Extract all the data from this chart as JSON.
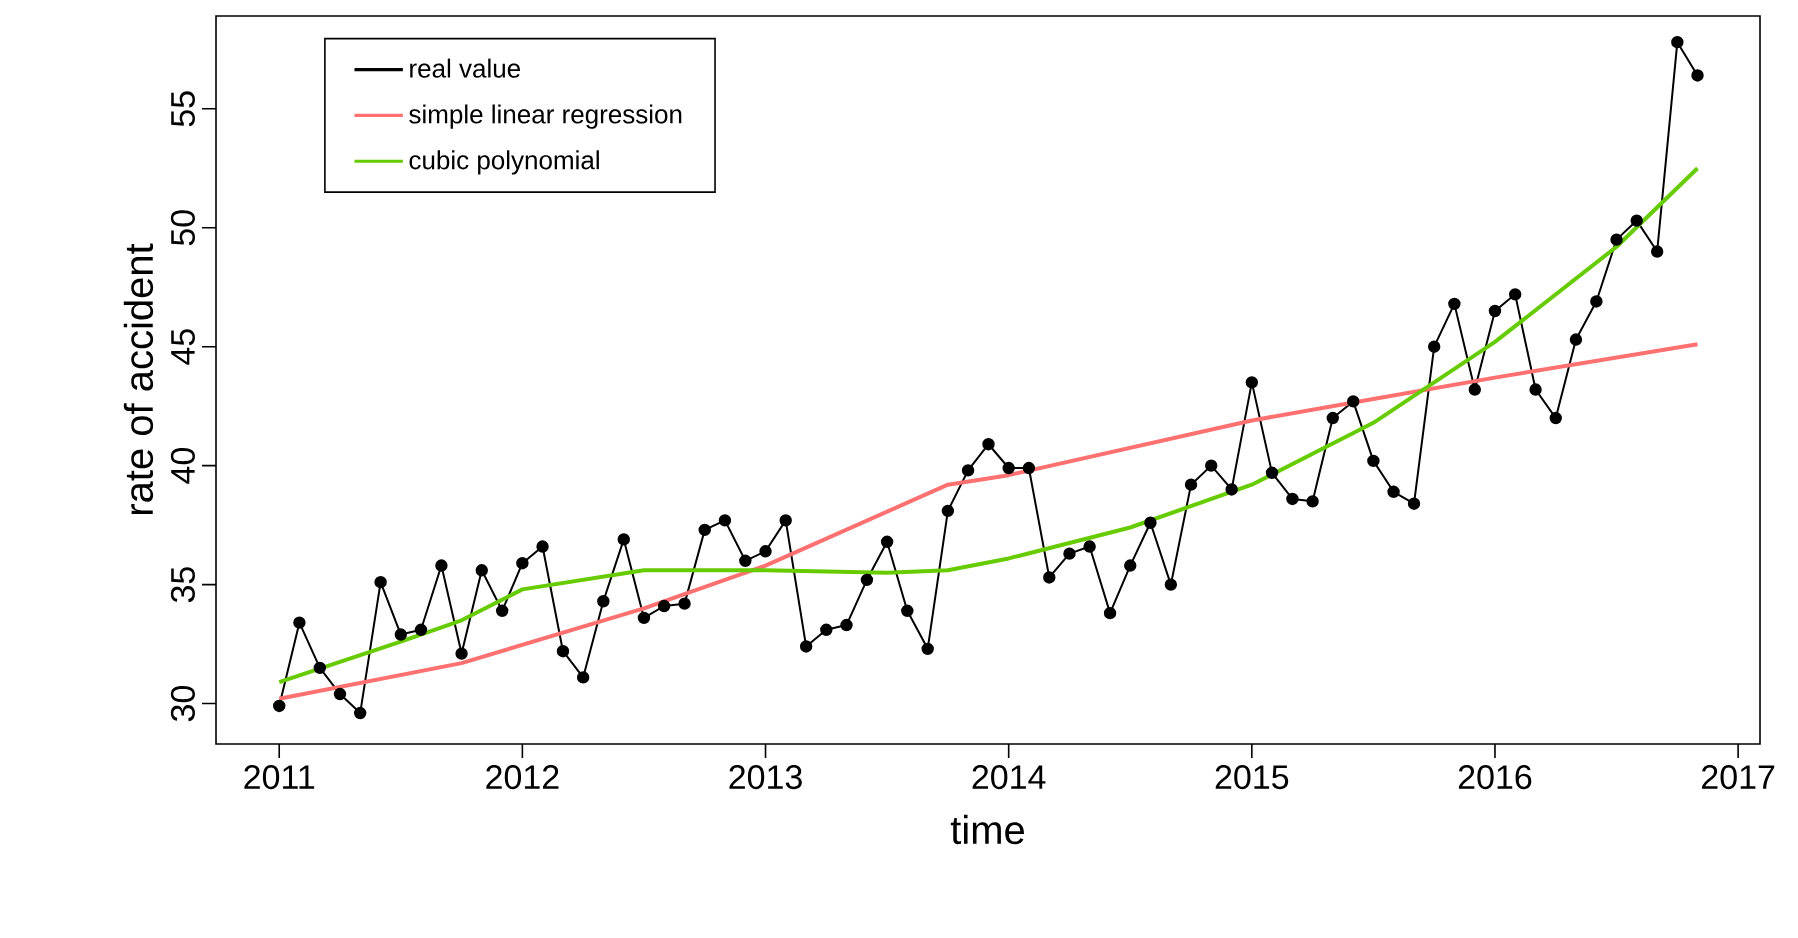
{
  "chart_data": {
    "type": "line",
    "xlabel": "time",
    "ylabel": "rate of accident",
    "xlim": [
      2010.74,
      2017.09
    ],
    "ylim": [
      28.3,
      58.9
    ],
    "xticks": [
      2011,
      2012,
      2013,
      2014,
      2015,
      2016,
      2017
    ],
    "yticks": [
      30,
      35,
      40,
      45,
      50,
      55
    ],
    "grid": false,
    "legend": "top left",
    "series": [
      {
        "name": "real value",
        "color": "#000000",
        "marker": "circle",
        "x": [
          2011.0,
          2011.083,
          2011.167,
          2011.25,
          2011.333,
          2011.417,
          2011.5,
          2011.583,
          2011.667,
          2011.75,
          2011.833,
          2011.917,
          2012.0,
          2012.083,
          2012.167,
          2012.25,
          2012.333,
          2012.417,
          2012.5,
          2012.583,
          2012.667,
          2012.75,
          2012.833,
          2012.917,
          2013.0,
          2013.083,
          2013.167,
          2013.25,
          2013.333,
          2013.417,
          2013.5,
          2013.583,
          2013.667,
          2013.75,
          2013.833,
          2013.917,
          2014.0,
          2014.083,
          2014.167,
          2014.25,
          2014.333,
          2014.417,
          2014.5,
          2014.583,
          2014.667,
          2014.75,
          2014.833,
          2014.917,
          2015.0,
          2015.083,
          2015.167,
          2015.25,
          2015.333,
          2015.417,
          2015.5,
          2015.583,
          2015.667,
          2015.75,
          2015.833,
          2015.917,
          2016.0,
          2016.083,
          2016.167,
          2016.25,
          2016.333,
          2016.417,
          2016.5,
          2016.583,
          2016.667,
          2016.75,
          2016.833
        ],
        "values": [
          29.9,
          33.4,
          31.5,
          30.4,
          29.6,
          35.1,
          32.9,
          33.1,
          35.8,
          32.1,
          35.6,
          33.9,
          35.9,
          36.6,
          32.2,
          31.1,
          34.3,
          36.9,
          33.6,
          34.1,
          34.2,
          37.3,
          37.7,
          36.0,
          36.4,
          37.7,
          32.4,
          33.1,
          33.3,
          35.2,
          36.8,
          33.9,
          32.3,
          38.1,
          39.8,
          40.9,
          39.9,
          39.9,
          35.3,
          36.3,
          36.6,
          33.8,
          35.8,
          37.6,
          35.0,
          39.2,
          40.0,
          39.0,
          43.5,
          39.7,
          38.6,
          38.5,
          42.0,
          42.7,
          40.2,
          38.9,
          38.4,
          45.0,
          46.8,
          43.2,
          46.5,
          47.2,
          43.2,
          42.0,
          45.3,
          46.9,
          49.5,
          50.3,
          49.0,
          57.8,
          56.4
        ]
      },
      {
        "name": "simple linear regression",
        "color": "#ff7070",
        "marker": "none",
        "x": [
          2011.0,
          2011.75,
          2012.5,
          2013.0,
          2013.75,
          2014.0,
          2015.0,
          2015.5,
          2016.0,
          2016.833
        ],
        "values": [
          30.2,
          31.7,
          34.0,
          35.8,
          39.2,
          39.6,
          41.9,
          42.8,
          43.7,
          45.1
        ]
      },
      {
        "name": "cubic polynomial",
        "color": "#66cc00",
        "marker": "none",
        "x": [
          2011.0,
          2011.5,
          2011.75,
          2012.0,
          2012.5,
          2013.0,
          2013.5,
          2013.75,
          2014.0,
          2014.5,
          2015.0,
          2015.5,
          2016.0,
          2016.5,
          2016.833
        ],
        "values": [
          30.9,
          32.6,
          33.5,
          34.8,
          35.6,
          35.6,
          35.5,
          35.6,
          36.1,
          37.4,
          39.2,
          41.8,
          45.2,
          49.2,
          52.5
        ]
      }
    ]
  }
}
